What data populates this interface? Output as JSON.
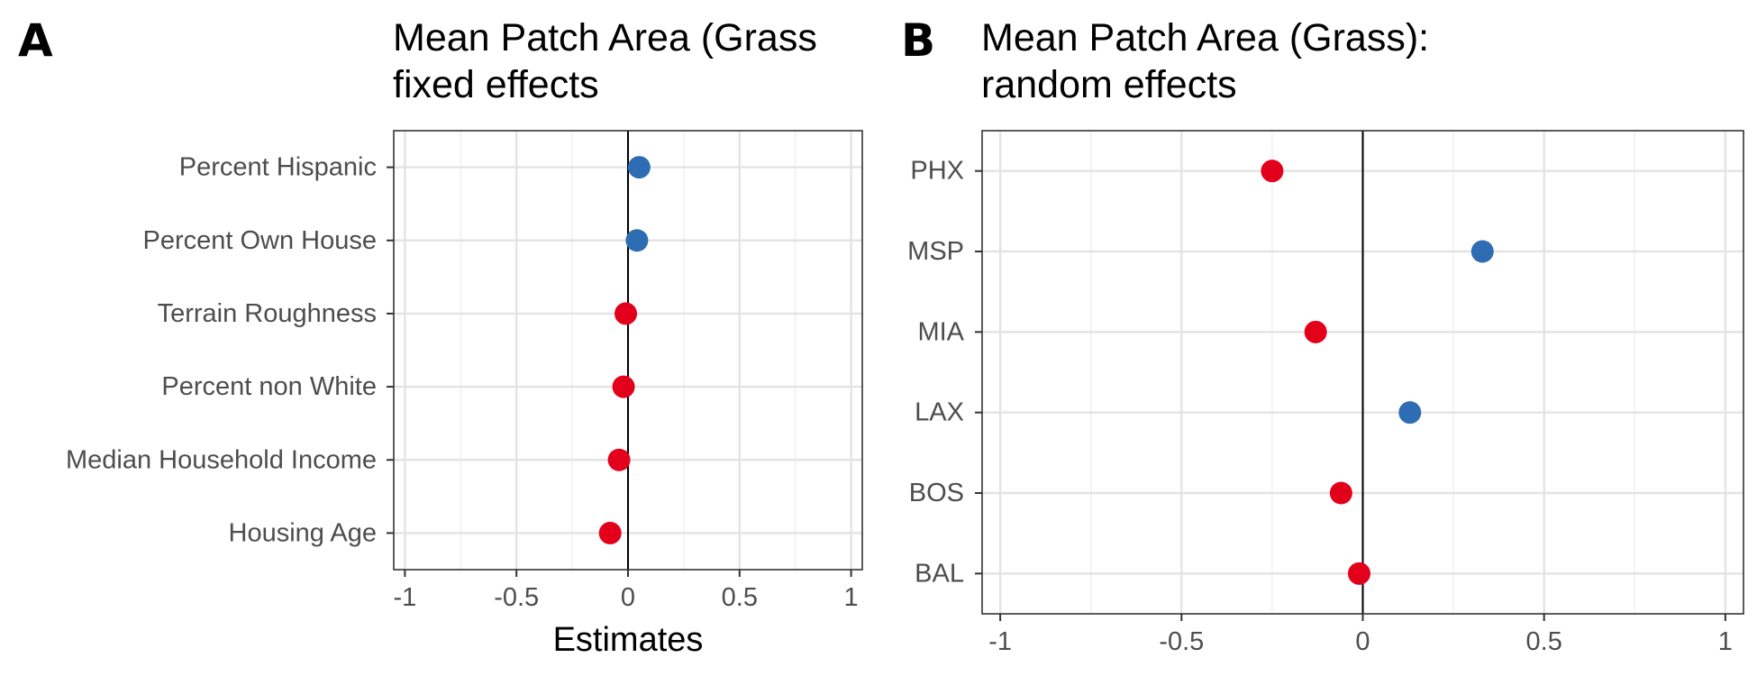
{
  "chart_data": [
    {
      "type": "scatter",
      "panel": "A",
      "title_lines": [
        "Mean Patch Area (Grass",
        "fixed effects"
      ],
      "xlabel": "Estimates",
      "ylabel": "",
      "xlim": [
        -1.05,
        1.05
      ],
      "xticks": [
        -1,
        -0.5,
        0,
        0.5,
        1
      ],
      "xtick_labels": [
        "-1",
        "-0.5",
        "0",
        "0.5",
        "1"
      ],
      "categories": [
        "Percent Hispanic",
        "Percent Own House",
        "Terrain Roughness",
        "Percent non White",
        "Median Household Income",
        "Housing Age"
      ],
      "values": [
        0.05,
        0.04,
        -0.01,
        -0.02,
        -0.04,
        -0.08
      ],
      "grid": true,
      "legend": "none",
      "colors": {
        "positive": "#2e6db4",
        "negative": "#e3001b"
      }
    },
    {
      "type": "scatter",
      "panel": "B",
      "title_lines": [
        "Mean Patch Area (Grass):",
        "random effects"
      ],
      "xlabel": "",
      "ylabel": "",
      "xlim": [
        -1.05,
        1.05
      ],
      "xticks": [
        -1,
        -0.5,
        0,
        0.5,
        1
      ],
      "xtick_labels": [
        "-1",
        "-0.5",
        "0",
        "0.5",
        "1"
      ],
      "categories": [
        "PHX",
        "MSP",
        "MIA",
        "LAX",
        "BOS",
        "BAL"
      ],
      "values": [
        -0.25,
        0.33,
        -0.13,
        0.13,
        -0.06,
        -0.01
      ],
      "grid": true,
      "legend": "none",
      "colors": {
        "positive": "#2e6db4",
        "negative": "#e3001b"
      }
    }
  ]
}
